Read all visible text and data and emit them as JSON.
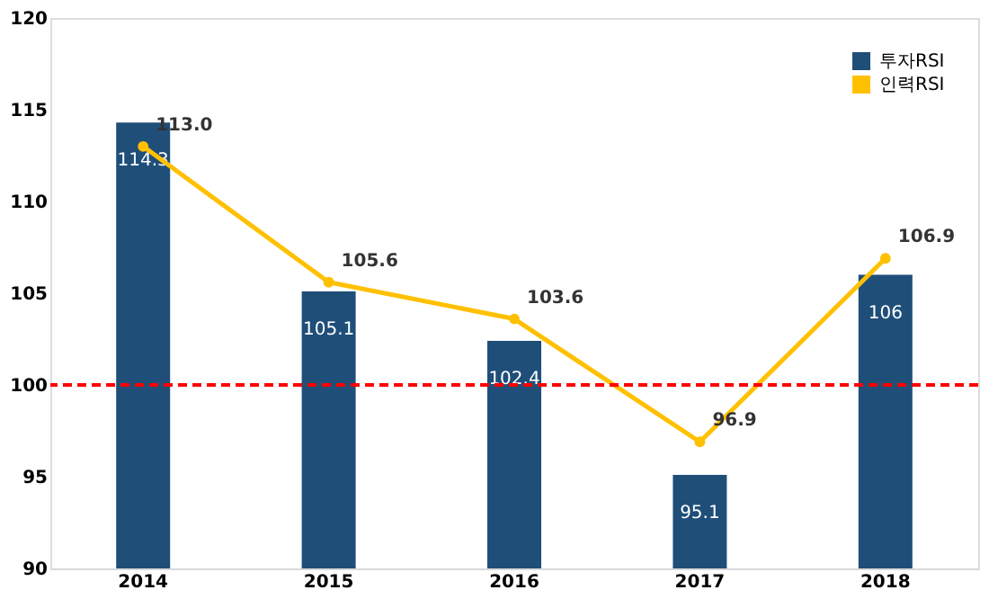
{
  "chart_data": {
    "type": "bar",
    "categories": [
      "2014",
      "2015",
      "2016",
      "2017",
      "2018"
    ],
    "series": [
      {
        "name": "투자RSI",
        "color": "#1f4e79",
        "values": [
          114.3,
          105.1,
          102.4,
          95.1,
          106
        ],
        "value_labels": [
          "114.3",
          "105.1",
          "102.4",
          "95.1",
          "106"
        ]
      },
      {
        "name": "인력RSI",
        "type": "line",
        "color": "#ffc000",
        "values": [
          113.0,
          105.6,
          103.6,
          96.9,
          106.9
        ],
        "value_labels": [
          "113.0",
          "105.6",
          "103.6",
          "96.9",
          "106.9"
        ]
      }
    ],
    "ylim": [
      90,
      120
    ],
    "yticks": [
      90,
      95,
      100,
      105,
      110,
      115,
      120
    ],
    "grid": false,
    "legend": "top right",
    "marker": "circle",
    "ref_lines": [
      {
        "axis": "y",
        "value": 100,
        "color": "#ff0000",
        "line_style": "dashed"
      }
    ]
  }
}
